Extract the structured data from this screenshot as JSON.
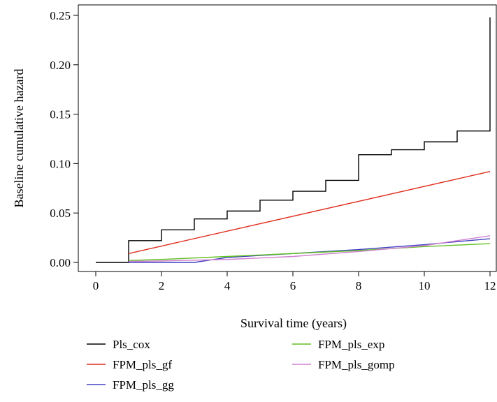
{
  "chart_data": {
    "type": "line",
    "title": "",
    "xlabel": "Survival time (years)",
    "ylabel": "Baseline cumulative hazard",
    "xlim": [
      0,
      12
    ],
    "ylim": [
      0,
      0.25
    ],
    "x_ticks": [
      0,
      2,
      4,
      6,
      8,
      10,
      12
    ],
    "x_tick_labels": [
      "0",
      "2",
      "4",
      "6",
      "8",
      "10",
      "12"
    ],
    "y_ticks": [
      0,
      0.05,
      0.1,
      0.15,
      0.2,
      0.25
    ],
    "y_tick_labels": [
      "0.00",
      "0.05",
      "0.10",
      "0.15",
      "0.20",
      "0.25"
    ],
    "grid": false,
    "legend_position": "bottom",
    "series": [
      {
        "name": "Pls_cox",
        "color": "#000000",
        "step": true,
        "x": [
          0,
          1,
          2,
          3,
          4,
          5,
          6,
          7,
          8,
          9,
          10,
          11,
          12
        ],
        "values": [
          0,
          0.022,
          0.033,
          0.044,
          0.052,
          0.063,
          0.072,
          0.083,
          0.109,
          0.114,
          0.122,
          0.133,
          0.248
        ]
      },
      {
        "name": "FPM_pls_gf",
        "color": "#e03020",
        "step": false,
        "x": [
          1,
          12
        ],
        "values": [
          0.009,
          0.092
        ]
      },
      {
        "name": "FPM_pls_gg",
        "color": "#4040c0",
        "step": false,
        "x": [
          1,
          3,
          4,
          6,
          8,
          10,
          12
        ],
        "values": [
          0.0,
          0.0,
          0.005,
          0.009,
          0.013,
          0.018,
          0.024
        ]
      },
      {
        "name": "FPM_pls_exp",
        "color": "#60c020",
        "step": false,
        "x": [
          1,
          2,
          4,
          6,
          8,
          10,
          12
        ],
        "values": [
          0.002,
          0.003,
          0.006,
          0.009,
          0.012,
          0.016,
          0.019
        ]
      },
      {
        "name": "FPM_pls_gomp",
        "color": "#d080d0",
        "step": false,
        "x": [
          1,
          2,
          4,
          6,
          8,
          10,
          11,
          12
        ],
        "values": [
          0.001,
          0.0015,
          0.003,
          0.006,
          0.011,
          0.017,
          0.022,
          0.027
        ]
      }
    ]
  }
}
